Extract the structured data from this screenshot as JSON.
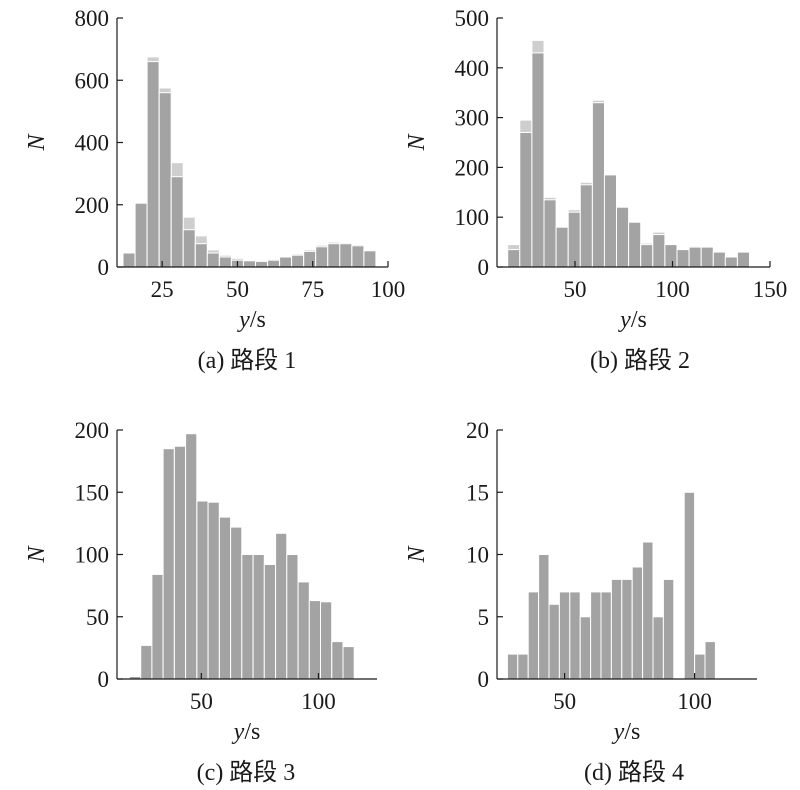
{
  "chart_data": [
    {
      "type": "bar",
      "caption": "(a) 路段 1",
      "xlabel": "y",
      "xlabel_unit": "/s",
      "ylabel": "N",
      "xlim": [
        10,
        100
      ],
      "ylim": [
        0,
        800
      ],
      "xticks": [
        25,
        50,
        75,
        100
      ],
      "yticks": [
        0,
        200,
        400,
        600,
        800
      ],
      "bin_width": 4,
      "bins_start": [
        12,
        16,
        20,
        24,
        28,
        32,
        36,
        40,
        44,
        48,
        52,
        56,
        60,
        64,
        68,
        72,
        76,
        80,
        84,
        88,
        92
      ],
      "series": [
        {
          "values": [
            45,
            205,
            660,
            560,
            290,
            120,
            75,
            45,
            32,
            22,
            20,
            18,
            22,
            32,
            38,
            50,
            65,
            75,
            75,
            68,
            52
          ]
        },
        {
          "values": [
            45,
            205,
            675,
            575,
            335,
            160,
            100,
            55,
            38,
            28,
            22,
            20,
            25,
            35,
            42,
            55,
            70,
            80,
            78,
            72,
            55
          ]
        }
      ]
    },
    {
      "type": "bar",
      "caption": "(b) 路段 2",
      "xlabel": "y",
      "xlabel_unit": "/s",
      "ylabel": "N",
      "xlim": [
        10,
        150
      ],
      "ylim": [
        0,
        500
      ],
      "xticks": [
        50,
        100,
        150
      ],
      "yticks": [
        0,
        100,
        200,
        300,
        400,
        500
      ],
      "bin_width": 6.2,
      "bins_start": [
        15.5,
        21.7,
        27.9,
        34.1,
        40.3,
        46.5,
        52.7,
        58.9,
        65.1,
        71.3,
        77.5,
        83.7,
        89.9,
        96.1,
        102.3,
        108.5,
        114.7,
        120.9,
        127.1,
        133.3
      ],
      "series": [
        {
          "values": [
            35,
            270,
            430,
            135,
            80,
            110,
            165,
            330,
            185,
            120,
            90,
            45,
            65,
            45,
            35,
            40,
            40,
            30,
            20,
            30
          ]
        },
        {
          "values": [
            45,
            295,
            455,
            140,
            80,
            115,
            170,
            335,
            185,
            120,
            90,
            48,
            70,
            45,
            35,
            42,
            40,
            32,
            22,
            30
          ]
        }
      ]
    },
    {
      "type": "bar",
      "caption": "(c) 路段 3",
      "xlabel": "y",
      "xlabel_unit": "/s",
      "ylabel": "N",
      "xlim": [
        14,
        125
      ],
      "ylim": [
        0,
        200
      ],
      "xticks": [
        50,
        100
      ],
      "yticks": [
        0,
        50,
        100,
        150,
        200
      ],
      "bin_width": 4.8,
      "bins_start": [
        19.3,
        24.1,
        28.9,
        33.7,
        38.5,
        43.3,
        48.1,
        52.9,
        57.7,
        62.5,
        67.3,
        72.1,
        76.9,
        81.7,
        86.5,
        91.3,
        96.1,
        100.9,
        105.7,
        110.5
      ],
      "series": [
        {
          "values": [
            2,
            27,
            84,
            185,
            187,
            197,
            143,
            142,
            130,
            122,
            100,
            100,
            92,
            117,
            100,
            78,
            63,
            62,
            30,
            26
          ]
        }
      ]
    },
    {
      "type": "bar",
      "caption": "(d) 路段 4",
      "xlabel": "y",
      "xlabel_unit": "/s",
      "ylabel": "N",
      "xlim": [
        24,
        124
      ],
      "ylim": [
        0,
        20
      ],
      "xticks": [
        50,
        100
      ],
      "yticks": [
        0,
        5,
        10,
        15,
        20
      ],
      "bin_width": 4,
      "bins_start": [
        28,
        32,
        36,
        40,
        44,
        48,
        52,
        56,
        60,
        64,
        68,
        72,
        76,
        80,
        84,
        88,
        92,
        96,
        100,
        104
      ],
      "series": [
        {
          "values": [
            2,
            2,
            7,
            10,
            6,
            7,
            7,
            5,
            7,
            7,
            8,
            8,
            9,
            11,
            5,
            8,
            0,
            15,
            2,
            3
          ]
        }
      ]
    }
  ],
  "colors": {
    "bar": "#a3a3a3",
    "bar_light": "#cecece",
    "axis": "#1a1a1a"
  }
}
